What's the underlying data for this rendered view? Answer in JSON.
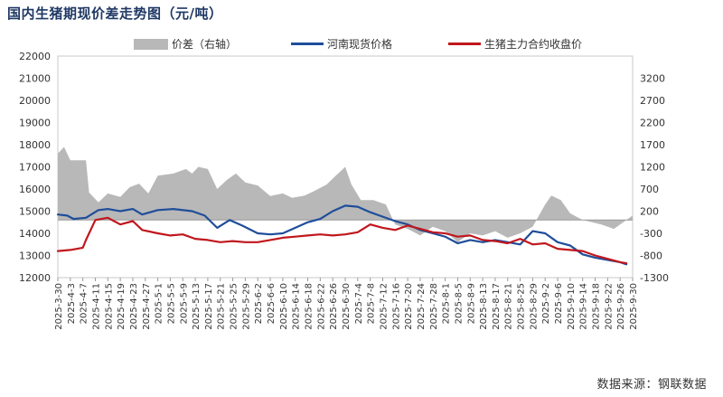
{
  "chart_data": {
    "title": "国内生猪期现价差走势图（元/吨）",
    "type": "line",
    "colors": {
      "spread": "#b8b8b8",
      "spot": "#1f4e9a",
      "futures": "#c0171d",
      "title": "#1f3864"
    },
    "legend": [
      {
        "key": "spread",
        "label": "价差（右轴）",
        "kind": "area"
      },
      {
        "key": "spot",
        "label": "河南现货价格",
        "kind": "line"
      },
      {
        "key": "futures",
        "label": "生猪主力合约收盘价",
        "kind": "line"
      }
    ],
    "y_left": {
      "min": 12000,
      "max": 22000,
      "ticks": [
        "22000",
        "21000",
        "20000",
        "19000",
        "18000",
        "17000",
        "16000",
        "15000",
        "14000",
        "13000",
        "12000"
      ]
    },
    "y_right": {
      "min": -1300,
      "max": 3700,
      "ticks": [
        "3200",
        "2700",
        "2200",
        "1700",
        "1200",
        "700",
        "200",
        "-300",
        "-800",
        "-1300"
      ]
    },
    "x_tick_labels": [
      "2025-3-30",
      "2025-4-3",
      "2025-4-7",
      "2025-4-11",
      "2025-4-15",
      "2025-4-19",
      "2025-4-23",
      "2025-4-27",
      "2025-5-1",
      "2025-5-5",
      "2025-5-9",
      "2025-5-13",
      "2025-5-17",
      "2025-5-21",
      "2025-5-25",
      "2025-5-29",
      "2025-6-2",
      "2025-6-6",
      "2025-6-10",
      "2025-6-14",
      "2025-6-18",
      "2025-6-22",
      "2025-6-26",
      "2025-6-30",
      "2025-7-4",
      "2025-7-8",
      "2025-7-12",
      "2025-7-16",
      "2025-7-20",
      "2025-7-24",
      "2025-7-28",
      "2025-8-1",
      "2025-8-5",
      "2025-8-9",
      "2025-8-13",
      "2025-8-17",
      "2025-8-21",
      "2025-8-25",
      "2025-8-29",
      "2025-9-2",
      "2025-9-6",
      "2025-9-10",
      "2025-9-14",
      "2025-9-18",
      "2025-9-22",
      "2025-9-26",
      "2025-9-30"
    ],
    "x_first": "2025-3-30",
    "x_last": "2025-9-30",
    "series": [
      {
        "key": "spread",
        "name": "价差（右轴）",
        "axis": "right",
        "points": [
          [
            "2025-3-30",
            1500
          ],
          [
            "2025-4-1",
            1650
          ],
          [
            "2025-4-3",
            1350
          ],
          [
            "2025-4-8",
            1350
          ],
          [
            "2025-4-9",
            620
          ],
          [
            "2025-4-12",
            400
          ],
          [
            "2025-4-15",
            600
          ],
          [
            "2025-4-19",
            520
          ],
          [
            "2025-4-22",
            740
          ],
          [
            "2025-4-25",
            820
          ],
          [
            "2025-4-28",
            600
          ],
          [
            "2025-5-1",
            1000
          ],
          [
            "2025-5-6",
            1050
          ],
          [
            "2025-5-10",
            1150
          ],
          [
            "2025-5-12",
            1050
          ],
          [
            "2025-5-14",
            1200
          ],
          [
            "2025-5-17",
            1150
          ],
          [
            "2025-5-20",
            700
          ],
          [
            "2025-5-23",
            900
          ],
          [
            "2025-5-26",
            1050
          ],
          [
            "2025-5-29",
            850
          ],
          [
            "2025-6-2",
            780
          ],
          [
            "2025-6-6",
            540
          ],
          [
            "2025-6-10",
            600
          ],
          [
            "2025-6-13",
            500
          ],
          [
            "2025-6-17",
            550
          ],
          [
            "2025-6-20",
            650
          ],
          [
            "2025-6-24",
            800
          ],
          [
            "2025-6-27",
            1000
          ],
          [
            "2025-6-30",
            1200
          ],
          [
            "2025-7-2",
            800
          ],
          [
            "2025-7-5",
            450
          ],
          [
            "2025-7-9",
            450
          ],
          [
            "2025-7-13",
            350
          ],
          [
            "2025-7-16",
            -100
          ],
          [
            "2025-7-20",
            -200
          ],
          [
            "2025-7-24",
            -350
          ],
          [
            "2025-7-28",
            -150
          ],
          [
            "2025-8-1",
            -250
          ],
          [
            "2025-8-5",
            -500
          ],
          [
            "2025-8-9",
            -300
          ],
          [
            "2025-8-13",
            -350
          ],
          [
            "2025-8-17",
            -250
          ],
          [
            "2025-8-21",
            -400
          ],
          [
            "2025-8-25",
            -300
          ],
          [
            "2025-8-29",
            -150
          ],
          [
            "2025-9-2",
            350
          ],
          [
            "2025-9-4",
            550
          ],
          [
            "2025-9-7",
            450
          ],
          [
            "2025-9-10",
            150
          ],
          [
            "2025-9-14",
            0
          ],
          [
            "2025-9-17",
            -50
          ],
          [
            "2025-9-20",
            -100
          ],
          [
            "2025-9-24",
            -200
          ],
          [
            "2025-9-27",
            -50
          ],
          [
            "2025-9-30",
            100
          ]
        ]
      },
      {
        "key": "spot",
        "name": "河南现货价格",
        "axis": "left",
        "points": [
          [
            "2025-3-30",
            14850
          ],
          [
            "2025-4-2",
            14800
          ],
          [
            "2025-4-4",
            14650
          ],
          [
            "2025-4-8",
            14700
          ],
          [
            "2025-4-12",
            15050
          ],
          [
            "2025-4-15",
            15100
          ],
          [
            "2025-4-19",
            15000
          ],
          [
            "2025-4-23",
            15100
          ],
          [
            "2025-4-26",
            14850
          ],
          [
            "2025-5-1",
            15050
          ],
          [
            "2025-5-6",
            15100
          ],
          [
            "2025-5-12",
            15000
          ],
          [
            "2025-5-16",
            14800
          ],
          [
            "2025-5-20",
            14250
          ],
          [
            "2025-5-24",
            14600
          ],
          [
            "2025-5-28",
            14350
          ],
          [
            "2025-6-2",
            14000
          ],
          [
            "2025-6-6",
            13950
          ],
          [
            "2025-6-10",
            14000
          ],
          [
            "2025-6-14",
            14250
          ],
          [
            "2025-6-18",
            14500
          ],
          [
            "2025-6-22",
            14650
          ],
          [
            "2025-6-26",
            15000
          ],
          [
            "2025-6-30",
            15250
          ],
          [
            "2025-7-4",
            15200
          ],
          [
            "2025-7-8",
            14950
          ],
          [
            "2025-7-12",
            14750
          ],
          [
            "2025-7-16",
            14550
          ],
          [
            "2025-7-20",
            14400
          ],
          [
            "2025-7-24",
            14150
          ],
          [
            "2025-7-28",
            14000
          ],
          [
            "2025-8-1",
            13850
          ],
          [
            "2025-8-5",
            13550
          ],
          [
            "2025-8-9",
            13700
          ],
          [
            "2025-8-13",
            13600
          ],
          [
            "2025-8-17",
            13700
          ],
          [
            "2025-8-21",
            13600
          ],
          [
            "2025-8-25",
            13500
          ],
          [
            "2025-8-29",
            14100
          ],
          [
            "2025-9-2",
            14000
          ],
          [
            "2025-9-6",
            13600
          ],
          [
            "2025-9-10",
            13450
          ],
          [
            "2025-9-14",
            13050
          ],
          [
            "2025-9-18",
            12900
          ],
          [
            "2025-9-22",
            12800
          ],
          [
            "2025-9-26",
            12700
          ],
          [
            "2025-9-28",
            12600
          ]
        ]
      },
      {
        "key": "futures",
        "name": "生猪主力合约收盘价",
        "axis": "left",
        "points": [
          [
            "2025-3-30",
            13200
          ],
          [
            "2025-4-3",
            13250
          ],
          [
            "2025-4-7",
            13350
          ],
          [
            "2025-4-8",
            13700
          ],
          [
            "2025-4-11",
            14600
          ],
          [
            "2025-4-15",
            14700
          ],
          [
            "2025-4-19",
            14400
          ],
          [
            "2025-4-23",
            14550
          ],
          [
            "2025-4-26",
            14150
          ],
          [
            "2025-5-1",
            14000
          ],
          [
            "2025-5-5",
            13900
          ],
          [
            "2025-5-9",
            13950
          ],
          [
            "2025-5-13",
            13750
          ],
          [
            "2025-5-17",
            13700
          ],
          [
            "2025-5-21",
            13600
          ],
          [
            "2025-5-25",
            13650
          ],
          [
            "2025-5-29",
            13600
          ],
          [
            "2025-6-2",
            13600
          ],
          [
            "2025-6-6",
            13700
          ],
          [
            "2025-6-10",
            13800
          ],
          [
            "2025-6-14",
            13850
          ],
          [
            "2025-6-18",
            13900
          ],
          [
            "2025-6-22",
            13950
          ],
          [
            "2025-6-26",
            13900
          ],
          [
            "2025-6-30",
            13950
          ],
          [
            "2025-7-4",
            14050
          ],
          [
            "2025-7-8",
            14400
          ],
          [
            "2025-7-12",
            14250
          ],
          [
            "2025-7-16",
            14150
          ],
          [
            "2025-7-20",
            14350
          ],
          [
            "2025-7-24",
            14200
          ],
          [
            "2025-7-28",
            14050
          ],
          [
            "2025-8-1",
            14000
          ],
          [
            "2025-8-5",
            13850
          ],
          [
            "2025-8-9",
            13900
          ],
          [
            "2025-8-13",
            13700
          ],
          [
            "2025-8-17",
            13650
          ],
          [
            "2025-8-21",
            13550
          ],
          [
            "2025-8-25",
            13750
          ],
          [
            "2025-8-29",
            13500
          ],
          [
            "2025-9-2",
            13550
          ],
          [
            "2025-9-6",
            13300
          ],
          [
            "2025-9-10",
            13250
          ],
          [
            "2025-9-14",
            13200
          ],
          [
            "2025-9-18",
            13000
          ],
          [
            "2025-9-22",
            12850
          ],
          [
            "2025-9-26",
            12700
          ],
          [
            "2025-9-28",
            12650
          ]
        ]
      }
    ]
  },
  "source": "数据来源：钢联数据"
}
